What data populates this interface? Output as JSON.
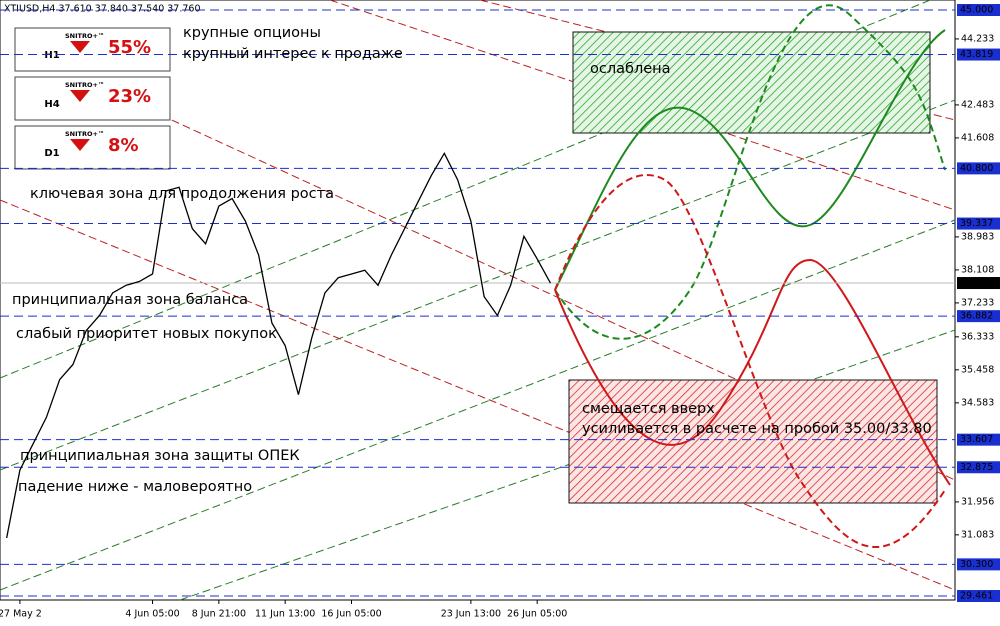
{
  "chart_data": {
    "type": "line",
    "title": "XTIUSD,H4  37.610 37.840 37.540 37.760",
    "categories": [
      null,
      "27 May 2",
      null,
      null,
      null,
      null,
      null,
      null,
      null,
      null,
      null,
      "4 Jun 05:00",
      null,
      null,
      null,
      null,
      "8 Jun 21:00",
      null,
      null,
      null,
      null,
      "11 Jun 13:00",
      null,
      null,
      null,
      null,
      "16 Jun 05:00",
      null,
      null,
      null,
      null,
      null,
      null,
      null,
      null,
      "23 Jun 13:00",
      null,
      null,
      null,
      null,
      "26 Jun 05:00",
      null,
      null,
      null,
      null,
      null,
      null,
      null,
      null,
      null,
      null,
      null,
      null,
      null,
      null,
      null,
      null,
      null,
      null,
      null,
      null,
      null,
      null,
      null,
      null,
      null,
      null,
      null,
      null,
      null,
      null,
      null
    ],
    "series": [
      {
        "name": "XTIUSD",
        "color": "#000000",
        "values": [
          31.0,
          32.8,
          33.5,
          34.2,
          35.2,
          35.6,
          36.5,
          36.9,
          37.5,
          37.7,
          37.8,
          38.0,
          40.2,
          40.3,
          39.2,
          38.8,
          39.8,
          40.0,
          39.4,
          38.5,
          36.7,
          36.1,
          34.8,
          36.3,
          37.5,
          37.9,
          38.0,
          38.1,
          37.7,
          38.5,
          39.2,
          39.9,
          40.6,
          41.2,
          40.5,
          39.4,
          37.4,
          36.9,
          37.7,
          39.0,
          38.4,
          37.76,
          null,
          null,
          null,
          null,
          null,
          null,
          null,
          null,
          null,
          null,
          null,
          null,
          null,
          null,
          null,
          null,
          null,
          null,
          null,
          null,
          null,
          null,
          null,
          null,
          null,
          null,
          null,
          null,
          null,
          null
        ]
      }
    ],
    "ylim": [
      29.461,
      45
    ],
    "yticks": [
      44.233,
      42.483,
      41.608,
      38.983,
      38.108,
      37.233,
      36.333,
      35.458,
      34.583,
      31.956,
      31.083
    ],
    "levels": [
      {
        "value": 45,
        "label": "45.000"
      },
      {
        "value": 43.819,
        "label": "43.819"
      },
      {
        "value": 40.8,
        "label": "40.800"
      },
      39.337,
      {
        "value": 36.882,
        "label": "36.882"
      },
      33.607,
      32.875,
      {
        "value": 30.3,
        "label": "30.300"
      },
      29.461
    ],
    "last_price": {
      "value": 37.76,
      "label": "37.760"
    },
    "signals": [
      {
        "brand": "SNITRO+™",
        "timeframe": "H1",
        "value": 55,
        "value_label": "55%"
      },
      {
        "brand": "SNITRO+™",
        "timeframe": "H4",
        "value": 23,
        "value_label": "23%"
      },
      {
        "brand": "SNITRO+™",
        "timeframe": "D1",
        "value": 8,
        "value_label": "8%"
      }
    ],
    "annotations": [
      "крупные опционы",
      "крупный интерес к продаже",
      "ослаблена",
      "ключевая зона для продолжения роста",
      "принципиальная зона баланса",
      "слабый приоритет новых покупок",
      "принципиальная зона защиты ОПЕК",
      "падение ниже - маловероятно",
      "смещается вверх",
      "усиливается в расчете на пробой 35.00/33.80"
    ]
  }
}
